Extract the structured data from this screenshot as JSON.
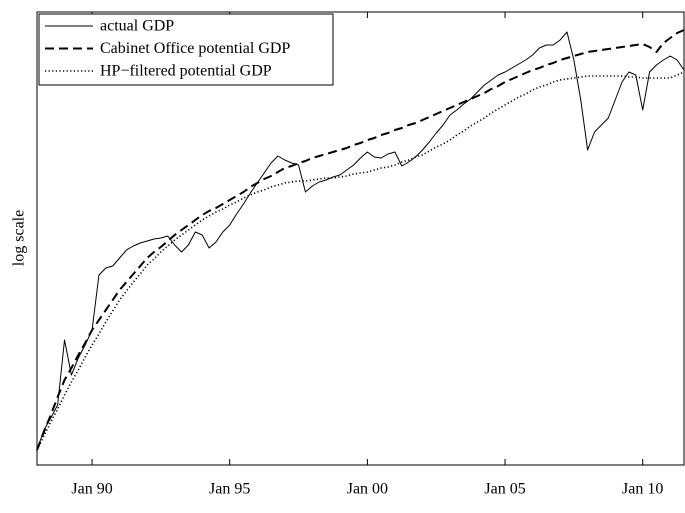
{
  "chart_data": {
    "type": "line",
    "ylabel": "log scale",
    "legend": "upper left",
    "grid": false,
    "xlim": [
      "1988-01",
      "2011-07"
    ],
    "ylim": [
      0,
      453
    ],
    "xticks": [
      {
        "value": "1990-01",
        "label": "Jan 90"
      },
      {
        "value": "1995-01",
        "label": "Jan 95"
      },
      {
        "value": "2000-01",
        "label": "Jan 00"
      },
      {
        "value": "2005-01",
        "label": "Jan 05"
      },
      {
        "value": "2010-01",
        "label": "Jan 10"
      }
    ],
    "x": [
      "1988-01",
      "1988-04",
      "1988-07",
      "1988-10",
      "1989-01",
      "1989-04",
      "1989-07",
      "1989-10",
      "1990-01",
      "1990-04",
      "1990-07",
      "1990-10",
      "1991-01",
      "1991-04",
      "1991-07",
      "1991-10",
      "1992-01",
      "1992-04",
      "1992-07",
      "1992-10",
      "1993-01",
      "1993-04",
      "1993-07",
      "1993-10",
      "1994-01",
      "1994-04",
      "1994-07",
      "1994-10",
      "1995-01",
      "1995-04",
      "1995-07",
      "1995-10",
      "1996-01",
      "1996-04",
      "1996-07",
      "1996-10",
      "1997-01",
      "1997-04",
      "1997-07",
      "1997-10",
      "1998-01",
      "1998-04",
      "1998-07",
      "1998-10",
      "1999-01",
      "1999-04",
      "1999-07",
      "1999-10",
      "2000-01",
      "2000-04",
      "2000-07",
      "2000-10",
      "2001-01",
      "2001-04",
      "2001-07",
      "2001-10",
      "2002-01",
      "2002-04",
      "2002-07",
      "2002-10",
      "2003-01",
      "2003-04",
      "2003-07",
      "2003-10",
      "2004-01",
      "2004-04",
      "2004-07",
      "2004-10",
      "2005-01",
      "2005-04",
      "2005-07",
      "2005-10",
      "2006-01",
      "2006-04",
      "2006-07",
      "2006-10",
      "2007-01",
      "2007-04",
      "2007-07",
      "2007-10",
      "2008-01",
      "2008-04",
      "2008-07",
      "2008-10",
      "2009-01",
      "2009-04",
      "2009-07",
      "2009-10",
      "2010-01",
      "2010-04",
      "2010-07",
      "2010-10",
      "2011-01",
      "2011-04",
      "2011-07"
    ],
    "series": [
      {
        "name": "actual GDP",
        "color": "#000000",
        "dash": "solid",
        "values": [
          15,
          35,
          47,
          60,
          125,
          90,
          107,
          120,
          135,
          190,
          197,
          199,
          207,
          215,
          219,
          222,
          224,
          226,
          227,
          229,
          220,
          213,
          220,
          233,
          230,
          217,
          223,
          233,
          240,
          251,
          261,
          272,
          282,
          292,
          302,
          309,
          305,
          302,
          300,
          273,
          279,
          283,
          285,
          288,
          290,
          295,
          300,
          307,
          313,
          308,
          307,
          311,
          313,
          299,
          303,
          308,
          315,
          323,
          332,
          340,
          350,
          355,
          361,
          366,
          373,
          380,
          385,
          390,
          393,
          397,
          401,
          405,
          410,
          417,
          420,
          420,
          425,
          433,
          405,
          365,
          315,
          333,
          340,
          347,
          365,
          383,
          393,
          390,
          355,
          393,
          400,
          405,
          409,
          405,
          395
        ]
      },
      {
        "name": "Cabinet Office potential GDP",
        "color": "#000000",
        "dash": "dashed",
        "values": [
          15,
          33,
          50,
          68,
          85,
          97,
          110,
          122,
          135,
          145,
          155,
          165,
          175,
          183,
          191,
          199,
          207,
          213,
          218,
          224,
          230,
          235,
          240,
          245,
          250,
          254,
          257,
          261,
          265,
          269,
          273,
          278,
          282,
          286,
          289,
          293,
          297,
          299,
          302,
          304,
          307,
          309,
          311,
          313,
          315,
          317,
          320,
          322,
          325,
          327,
          330,
          332,
          335,
          337,
          340,
          342,
          345,
          348,
          351,
          354,
          357,
          360,
          363,
          366,
          369,
          372,
          376,
          379,
          383,
          386,
          389,
          392,
          395,
          397,
          400,
          402,
          405,
          407,
          409,
          411,
          413,
          414,
          415,
          416,
          417,
          418,
          419,
          420,
          421,
          418,
          413,
          422,
          427,
          432,
          435
        ]
      },
      {
        "name": "HP−filtered potential GDP",
        "color": "#000000",
        "dash": "dotted",
        "values": [
          15,
          29,
          43,
          56,
          70,
          83,
          95,
          108,
          120,
          131,
          143,
          154,
          165,
          174,
          183,
          191,
          200,
          206,
          213,
          219,
          225,
          230,
          235,
          240,
          245,
          249,
          253,
          256,
          260,
          263,
          267,
          270,
          273,
          275,
          278,
          280,
          282,
          283,
          284,
          284,
          285,
          286,
          287,
          287,
          288,
          289,
          291,
          292,
          293,
          295,
          297,
          298,
          300,
          303,
          305,
          308,
          310,
          314,
          318,
          321,
          325,
          330,
          334,
          339,
          343,
          347,
          352,
          356,
          360,
          364,
          368,
          371,
          375,
          378,
          380,
          383,
          385,
          386,
          387,
          388,
          389,
          389,
          389,
          389,
          389,
          389,
          388,
          388,
          387,
          387,
          387,
          387,
          387,
          390,
          393
        ]
      }
    ]
  }
}
